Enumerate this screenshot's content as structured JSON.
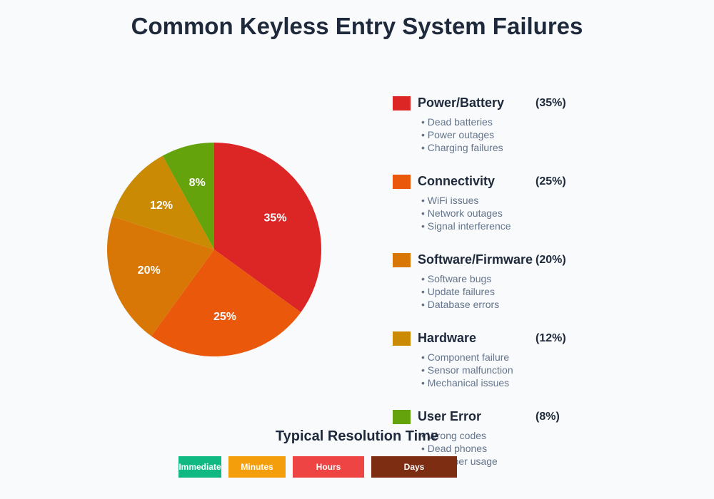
{
  "chart_data": {
    "type": "pie",
    "title": "Common Keyless Entry System Failures",
    "slices": [
      {
        "name": "Power/Battery",
        "value": 35,
        "label": "35%",
        "legend_pct": "(35%)",
        "color": "#dc2626",
        "details": [
          "• Dead batteries",
          "• Power outages",
          "• Charging failures"
        ]
      },
      {
        "name": "Connectivity",
        "value": 25,
        "label": "25%",
        "legend_pct": "(25%)",
        "color": "#ea580c",
        "details": [
          "• WiFi issues",
          "• Network outages",
          "• Signal interference"
        ]
      },
      {
        "name": "Software/Firmware",
        "value": 20,
        "label": "20%",
        "legend_pct": "(20%)",
        "color": "#d97706",
        "details": [
          "• Software bugs",
          "• Update failures",
          "• Database errors"
        ]
      },
      {
        "name": "Hardware",
        "value": 12,
        "label": "12%",
        "legend_pct": "(12%)",
        "color": "#ca8a04",
        "details": [
          "• Component failure",
          "• Sensor malfunction",
          "• Mechanical issues"
        ]
      },
      {
        "name": "User Error",
        "value": 8,
        "label": "8%",
        "legend_pct": "(8%)",
        "color": "#65a30d",
        "details": [
          "• Wrong codes",
          "• Dead phones",
          "• Improper usage"
        ]
      }
    ],
    "legend_position": "right"
  },
  "resolution": {
    "title": "Typical Resolution Time",
    "items": [
      {
        "label": "Immediate",
        "color": "#10b981"
      },
      {
        "label": "Minutes",
        "color": "#f59e0b"
      },
      {
        "label": "Hours",
        "color": "#ef4444"
      },
      {
        "label": "Days",
        "color": "#7c2d12"
      }
    ]
  }
}
